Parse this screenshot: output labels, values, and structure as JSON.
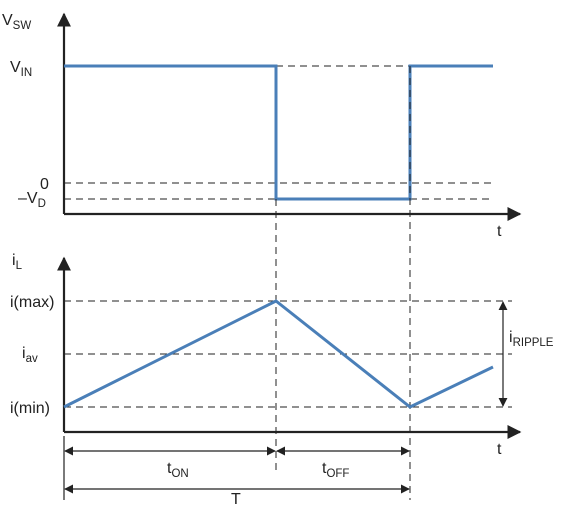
{
  "colors": {
    "waveform": "#4a7fb8",
    "axes": "#222222",
    "background": "#ffffff"
  },
  "top_plot": {
    "y_axis": {
      "base": "V",
      "sub": "SW"
    },
    "x_axis": "t",
    "levels": {
      "vin": {
        "base": "V",
        "sub": "IN"
      },
      "zero": "0",
      "neg_vd": {
        "base": "–V",
        "sub": "D"
      }
    }
  },
  "bottom_plot": {
    "y_axis": {
      "base": "i",
      "sub": "L"
    },
    "x_axis": "t",
    "levels": {
      "imax": "i(max)",
      "iav": {
        "base": "i",
        "sub": "av"
      },
      "imin": "i(min)"
    },
    "ripple": {
      "base": "i",
      "sub": "RIPPLE"
    }
  },
  "timing": {
    "ton": {
      "base": "t",
      "sub": "ON"
    },
    "toff": {
      "base": "t",
      "sub": "OFF"
    },
    "period": "T"
  }
}
